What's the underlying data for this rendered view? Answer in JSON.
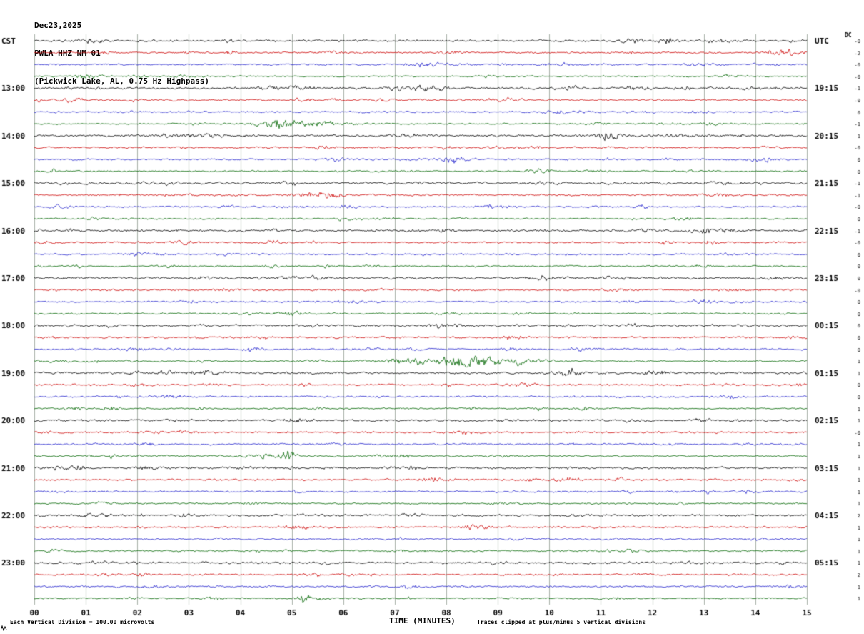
{
  "header": {
    "date": "Dec23,2025",
    "station": "PWLA HHZ NM 01",
    "description": "(Pickwick Lake, AL, 0.75 Hz Highpass)"
  },
  "footer": {
    "scale_note": "Each Vertical Division =  100.00 microvolts",
    "axis_title": "TIME (MINUTES)",
    "clip_note": "Traces clipped at plus/minus 5 vertical divisions"
  },
  "axes": {
    "left_header": "CST",
    "right_header": "UTC",
    "dc_header": "DC",
    "x_ticks": [
      "00",
      "01",
      "02",
      "03",
      "04",
      "05",
      "06",
      "07",
      "08",
      "09",
      "10",
      "11",
      "12",
      "13",
      "14",
      "15"
    ]
  },
  "chart_data": {
    "type": "line",
    "title": "PWLA HHZ NM 01 helicorder (Pickwick Lake, AL, 0.75 Hz Highpass) Dec23,2025",
    "x_range_minutes": [
      0,
      15
    ],
    "rows_per_hour": 4,
    "row_count": 48,
    "minutes_per_row": 15,
    "microvolts_per_division": 100.0,
    "clip_divisions": 5,
    "trace_colors": [
      "#000000",
      "#cc0000",
      "#2222cc",
      "#006600"
    ],
    "grid_color": "#a8b0a8",
    "noise_amplitude": 1.1,
    "left_labels": [
      {
        "row": 4,
        "label": "13:00"
      },
      {
        "row": 8,
        "label": "14:00"
      },
      {
        "row": 12,
        "label": "15:00"
      },
      {
        "row": 16,
        "label": "16:00"
      },
      {
        "row": 20,
        "label": "17:00"
      },
      {
        "row": 24,
        "label": "18:00"
      },
      {
        "row": 28,
        "label": "19:00"
      },
      {
        "row": 32,
        "label": "20:00"
      },
      {
        "row": 36,
        "label": "21:00"
      },
      {
        "row": 40,
        "label": "22:00"
      },
      {
        "row": 44,
        "label": "23:00"
      }
    ],
    "right_labels": [
      {
        "row": 4,
        "label": "19:15"
      },
      {
        "row": 8,
        "label": "20:15"
      },
      {
        "row": 12,
        "label": "21:15"
      },
      {
        "row": 16,
        "label": "22:15"
      },
      {
        "row": 20,
        "label": "23:15"
      },
      {
        "row": 24,
        "label": "00:15"
      },
      {
        "row": 28,
        "label": "01:15"
      },
      {
        "row": 32,
        "label": "02:15"
      },
      {
        "row": 36,
        "label": "03:15"
      },
      {
        "row": 40,
        "label": "04:15"
      },
      {
        "row": 44,
        "label": "05:15"
      }
    ],
    "dc_values": [
      "-0",
      "-2",
      "-0",
      "-0",
      "-1",
      "-0",
      "0",
      "-1",
      "1",
      "-0",
      "0",
      "0",
      "-1",
      "-1",
      "-0",
      "0",
      "-1",
      "-0",
      "0",
      "0",
      "0",
      "-0",
      "0",
      "0",
      "0",
      "0",
      "0",
      "1",
      "1",
      "0",
      "0",
      "1",
      "1",
      "-0",
      "1",
      "1",
      "1",
      "1",
      "1",
      "1",
      "2",
      "1",
      "1",
      "1",
      "1",
      "2",
      "1",
      "1"
    ],
    "events": [
      {
        "row": 1,
        "minute": 8.2,
        "width": 0.3,
        "amp": 1.6
      },
      {
        "row": 1,
        "minute": 14.5,
        "width": 0.4,
        "amp": 2.0
      },
      {
        "row": 2,
        "minute": 7.6,
        "width": 0.35,
        "amp": 2.2
      },
      {
        "row": 2,
        "minute": 10.2,
        "width": 0.25,
        "amp": 1.6
      },
      {
        "row": 2,
        "minute": 13.0,
        "width": 0.3,
        "amp": 1.4
      },
      {
        "row": 3,
        "minute": 1.0,
        "width": 0.3,
        "amp": 2.6
      },
      {
        "row": 3,
        "minute": 2.8,
        "width": 0.2,
        "amp": 1.4
      },
      {
        "row": 4,
        "minute": 4.9,
        "width": 0.4,
        "amp": 1.8
      },
      {
        "row": 4,
        "minute": 7.3,
        "width": 0.35,
        "amp": 2.0
      },
      {
        "row": 4,
        "minute": 10.4,
        "width": 0.2,
        "amp": 1.4
      },
      {
        "row": 5,
        "minute": 9.0,
        "width": 0.3,
        "amp": 1.4
      },
      {
        "row": 7,
        "minute": 4.75,
        "width": 0.3,
        "amp": 6.5
      },
      {
        "row": 7,
        "minute": 5.4,
        "width": 0.5,
        "amp": 2.5
      },
      {
        "row": 8,
        "minute": 3.3,
        "width": 0.35,
        "amp": 1.8
      },
      {
        "row": 9,
        "minute": 5.6,
        "width": 0.2,
        "amp": 1.8
      },
      {
        "row": 10,
        "minute": 8.1,
        "width": 0.3,
        "amp": 2.4
      },
      {
        "row": 10,
        "minute": 14.0,
        "width": 0.2,
        "amp": 1.4
      },
      {
        "row": 11,
        "minute": 9.8,
        "width": 0.25,
        "amp": 2.6
      },
      {
        "row": 11,
        "minute": 10.9,
        "width": 0.2,
        "amp": 1.6
      },
      {
        "row": 13,
        "minute": 5.4,
        "width": 0.3,
        "amp": 2.0
      },
      {
        "row": 13,
        "minute": 13.2,
        "width": 0.4,
        "amp": 1.6
      },
      {
        "row": 14,
        "minute": 6.1,
        "width": 0.2,
        "amp": 1.8
      },
      {
        "row": 15,
        "minute": 6.05,
        "width": 0.15,
        "amp": 2.2
      },
      {
        "row": 15,
        "minute": 1.2,
        "width": 0.3,
        "amp": 1.4
      },
      {
        "row": 16,
        "minute": 13.3,
        "width": 0.4,
        "amp": 1.6
      },
      {
        "row": 19,
        "minute": 2.6,
        "width": 0.2,
        "amp": 1.8
      },
      {
        "row": 23,
        "minute": 5.0,
        "width": 0.3,
        "amp": 1.3
      },
      {
        "row": 27,
        "minute": 7.2,
        "width": 0.5,
        "amp": 4.5
      },
      {
        "row": 27,
        "minute": 8.3,
        "width": 0.35,
        "amp": 8.0
      },
      {
        "row": 27,
        "minute": 8.7,
        "width": 0.7,
        "amp": 3.5
      },
      {
        "row": 27,
        "minute": 9.4,
        "width": 0.5,
        "amp": 2.5
      },
      {
        "row": 28,
        "minute": 12.2,
        "width": 0.25,
        "amp": 1.5
      },
      {
        "row": 31,
        "minute": 10.7,
        "width": 0.15,
        "amp": 2.2
      },
      {
        "row": 35,
        "minute": 1.7,
        "width": 0.3,
        "amp": 1.5
      },
      {
        "row": 35,
        "minute": 4.5,
        "width": 0.5,
        "amp": 2.5
      },
      {
        "row": 35,
        "minute": 4.95,
        "width": 0.12,
        "amp": 5.5
      },
      {
        "row": 35,
        "minute": 7.2,
        "width": 0.1,
        "amp": 3.5
      },
      {
        "row": 39,
        "minute": 4.3,
        "width": 0.3,
        "amp": 1.3
      },
      {
        "row": 47,
        "minute": 5.25,
        "width": 0.1,
        "amp": 5.0
      }
    ]
  }
}
